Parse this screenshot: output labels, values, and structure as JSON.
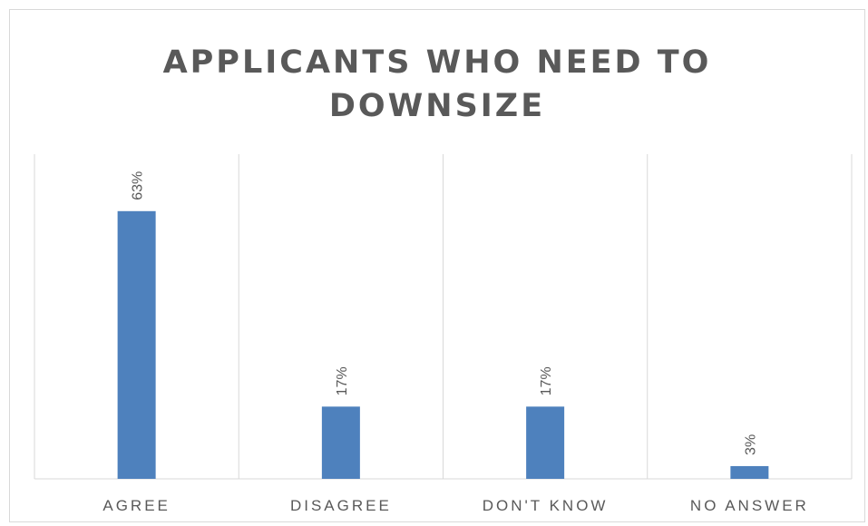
{
  "chart_data": {
    "type": "bar",
    "title": "APPLICANTS WHO NEED TO DOWNSIZE",
    "categories": [
      "AGREE",
      "DISAGREE",
      "DON'T KNOW",
      "NO ANSWER"
    ],
    "values": [
      63,
      17,
      17,
      3
    ],
    "data_labels": [
      "63%",
      "17%",
      "17%",
      "3%"
    ],
    "xlabel": "",
    "ylabel": "",
    "ylim": [
      0,
      70
    ],
    "grid": "vertical category separators",
    "legend": "none",
    "bar_color": "#4e81bd",
    "text_color": "#595959",
    "grid_color": "#d9d9d9"
  }
}
